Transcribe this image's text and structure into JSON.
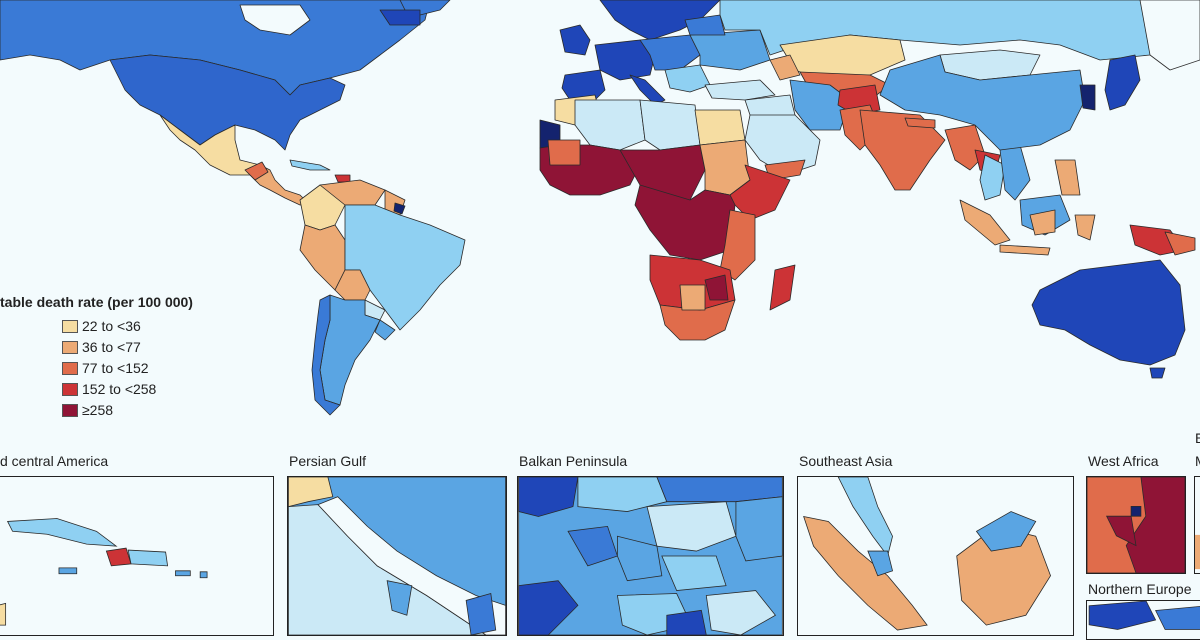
{
  "legend": {
    "title": "table death rate (per 100 000)",
    "items": [
      {
        "label": "22 to <36",
        "color": "#f6dda2"
      },
      {
        "label": "36 to <77",
        "color": "#ecaa75"
      },
      {
        "label": "77 to <152",
        "color": "#e06c4b"
      },
      {
        "label": "152 to <258",
        "color": "#cc3336"
      },
      {
        "label": "≥258",
        "color": "#8f1436"
      }
    ]
  },
  "palette": {
    "ocean": "#f3fbfd",
    "very_light_blue": "#cbe9f6",
    "light_blue": "#8fd0f2",
    "mid_blue": "#5aa5e3",
    "blue": "#3a7ad6",
    "dark_blue": "#1f46b8",
    "navy": "#14236e"
  },
  "insets": [
    {
      "title": "d central America"
    },
    {
      "title": "Persian Gulf"
    },
    {
      "title": "Balkan Peninsula"
    },
    {
      "title": "Southeast Asia"
    },
    {
      "title": "West Africa"
    },
    {
      "title": "Northern Europe"
    },
    {
      "title": "E"
    },
    {
      "title": "M"
    }
  ]
}
